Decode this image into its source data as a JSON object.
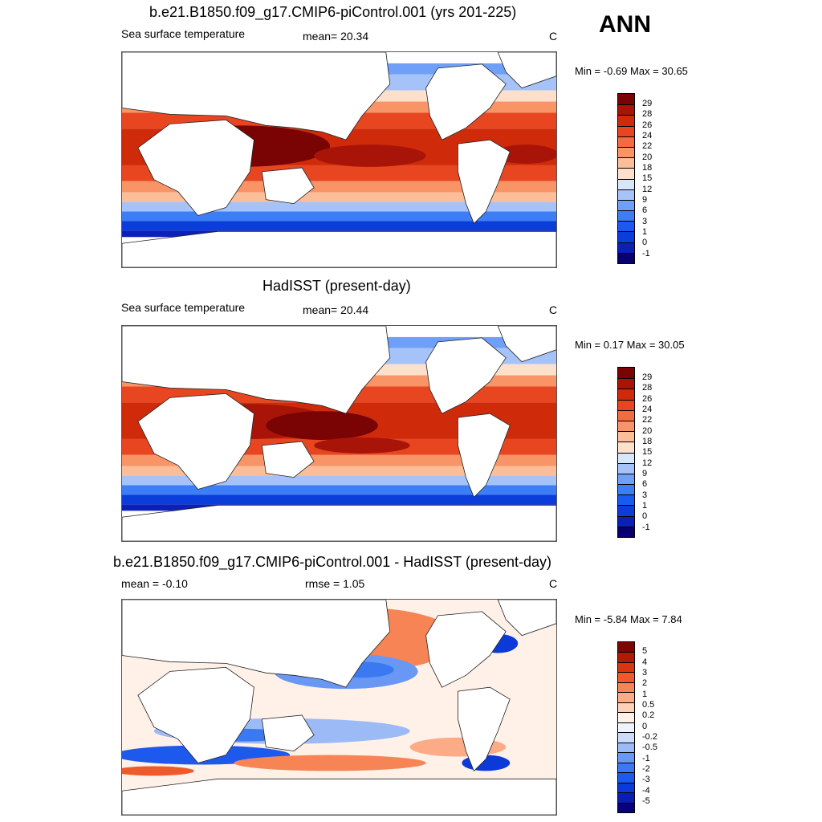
{
  "season": "ANN",
  "panels": [
    {
      "title": "b.e21.B1850.f09_g17.CMIP6-piControl.001 (yrs 201-225)",
      "left_label": "Sea surface temperature",
      "center_label": "mean=  20.34",
      "units": "C",
      "minmax": "Min =  -0.69 Max =  30.65",
      "palette": [
        "#08006e",
        "#0c1fb8",
        "#0b3ddb",
        "#1a5af0",
        "#3d7df5",
        "#6f9ff7",
        "#a5c3f9",
        "#d6e6fb",
        "#fde0cb",
        "#fcbd99",
        "#f99467",
        "#f46b3f",
        "#e84621",
        "#cf2b0b",
        "#a81508",
        "#7a0304"
      ],
      "levels": [
        "29",
        "28",
        "26",
        "24",
        "22",
        "20",
        "18",
        "15",
        "12",
        "9",
        "6",
        "3",
        "1",
        "0",
        "-1"
      ]
    },
    {
      "title": "HadISST (present-day)",
      "left_label": "Sea surface temperature",
      "center_label": "mean=  20.44",
      "units": "C",
      "minmax": "Min =   0.17 Max =  30.05",
      "palette": [
        "#08006e",
        "#0c1fb8",
        "#0b3ddb",
        "#1a5af0",
        "#3d7df5",
        "#6f9ff7",
        "#a5c3f9",
        "#d6e6fb",
        "#fde0cb",
        "#fcbd99",
        "#f99467",
        "#f46b3f",
        "#e84621",
        "#cf2b0b",
        "#a81508",
        "#7a0304"
      ],
      "levels": [
        "29",
        "28",
        "26",
        "24",
        "22",
        "20",
        "18",
        "15",
        "12",
        "9",
        "6",
        "3",
        "1",
        "0",
        "-1"
      ]
    },
    {
      "title": "b.e21.B1850.f09_g17.CMIP6-piControl.001 - HadISST (present-day)",
      "left_label": "mean =  -0.10",
      "center_label": "rmse =   1.05",
      "units": "C",
      "minmax": "Min =  -5.84 Max =   7.84",
      "palette": [
        "#07007a",
        "#0a1eb5",
        "#0c3ad8",
        "#1c59ec",
        "#3b79f2",
        "#6898f4",
        "#9cbaf6",
        "#cbdcf9",
        "#eef3fd",
        "#fff1e8",
        "#fdd1b7",
        "#fbab85",
        "#f78455",
        "#ef5a2d",
        "#d9350f",
        "#b21a07",
        "#7f0404"
      ],
      "levels": [
        "5",
        "4",
        "3",
        "2",
        "1",
        "0.5",
        "0.2",
        "0",
        "-0.2",
        "-0.5",
        "-1",
        "-2",
        "-3",
        "-4",
        "-5"
      ]
    }
  ]
}
